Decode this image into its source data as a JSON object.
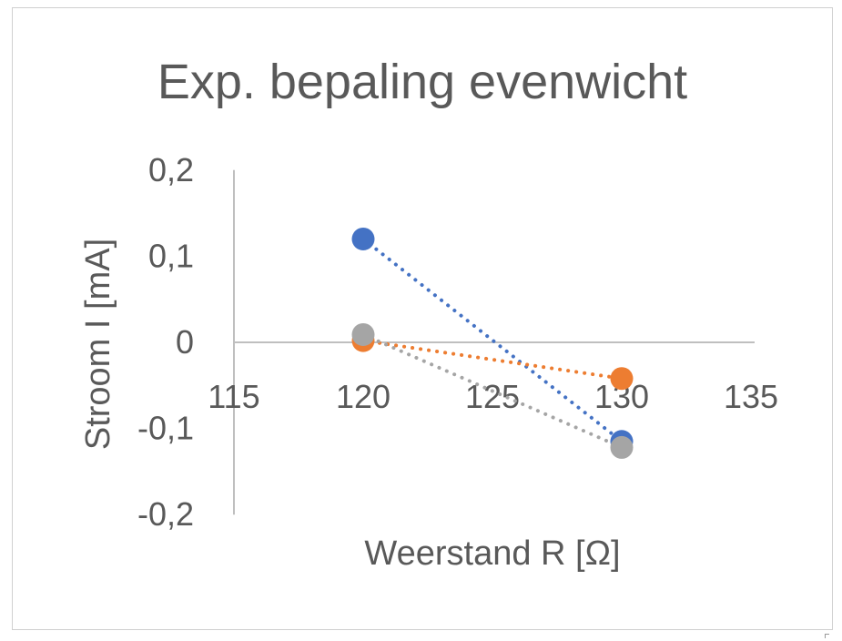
{
  "chart_data": {
    "type": "scatter",
    "title": "Exp. bepaling evenwicht",
    "xlabel": "Weerstand R [Ω]",
    "ylabel": "Stroom I [mA]",
    "xlim": [
      115,
      135
    ],
    "ylim": [
      -0.2,
      0.2
    ],
    "x_ticks": [
      "115",
      "120",
      "125",
      "130",
      "135"
    ],
    "y_ticks": [
      "0,2",
      "0,1",
      "0",
      "-0,1",
      "-0,2"
    ],
    "x_tick_values": [
      115,
      120,
      125,
      130,
      135
    ],
    "y_tick_values": [
      0.2,
      0.1,
      0,
      -0.1,
      -0.2
    ],
    "grid": false,
    "trendlines": "linear, dotted",
    "series": [
      {
        "color": "#4472c4",
        "points": [
          [
            120,
            0.12
          ],
          [
            130,
            -0.115
          ]
        ]
      },
      {
        "color": "#ed7d31",
        "points": [
          [
            120,
            0.002
          ],
          [
            130,
            -0.042
          ]
        ]
      },
      {
        "color": "#a5a5a5",
        "points": [
          [
            120,
            0.009
          ],
          [
            130,
            -0.122
          ]
        ]
      }
    ]
  }
}
